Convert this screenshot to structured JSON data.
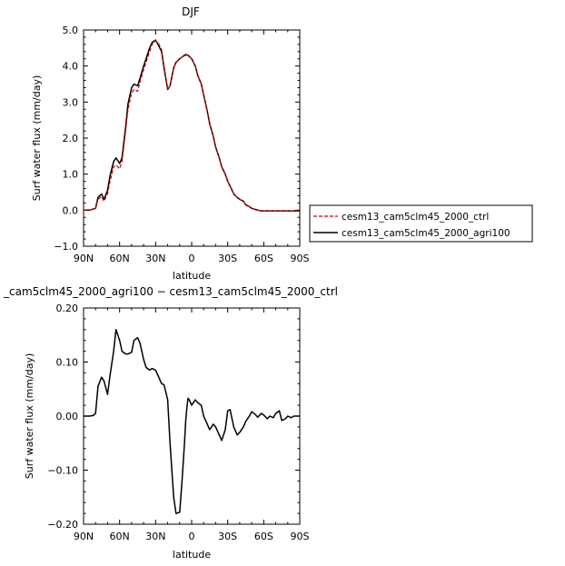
{
  "chart_data": [
    {
      "type": "line",
      "title": "DJF",
      "xlabel": "latitude",
      "ylabel": "Surf water flux (mm/day)",
      "x_ticks": [
        "90N",
        "60N",
        "30N",
        "0",
        "30S",
        "60S",
        "90S"
      ],
      "y_ticks": [
        "−1.0",
        "0.0",
        "1.0",
        "2.0",
        "3.0",
        "4.0",
        "5.0"
      ],
      "xlim": [
        90,
        -90
      ],
      "ylim": [
        -1.0,
        5.0
      ],
      "x": [
        90,
        85,
        80,
        78,
        75,
        73,
        70,
        68,
        65,
        63,
        60,
        58,
        55,
        53,
        50,
        48,
        45,
        43,
        40,
        38,
        35,
        33,
        30,
        28,
        25,
        23,
        20,
        18,
        15,
        13,
        10,
        8,
        5,
        3,
        0,
        -3,
        -5,
        -8,
        -10,
        -13,
        -15,
        -18,
        -20,
        -23,
        -25,
        -28,
        -30,
        -33,
        -35,
        -38,
        -40,
        -43,
        -45,
        -48,
        -50,
        -53,
        -55,
        -58,
        -60,
        -63,
        -65,
        -68,
        -70,
        -73,
        -75,
        -78,
        -80,
        -83,
        -85,
        -88,
        -90
      ],
      "legend_position": "right",
      "series": [
        {
          "name": "cesm13_cam5clm45_2000_ctrl",
          "color": "#cc0000",
          "dash": "dashed",
          "values": [
            0.0,
            0.0,
            0.05,
            0.3,
            0.38,
            0.25,
            0.45,
            0.8,
            1.2,
            1.25,
            1.15,
            1.35,
            2.2,
            2.8,
            3.25,
            3.35,
            3.3,
            3.55,
            3.9,
            4.1,
            4.4,
            4.6,
            4.7,
            4.65,
            4.45,
            4.0,
            3.35,
            3.45,
            3.95,
            4.1,
            4.2,
            4.25,
            4.3,
            4.3,
            4.2,
            4.0,
            3.75,
            3.5,
            3.2,
            2.75,
            2.4,
            2.05,
            1.75,
            1.45,
            1.2,
            1.0,
            0.8,
            0.6,
            0.45,
            0.35,
            0.3,
            0.25,
            0.15,
            0.1,
            0.05,
            0.02,
            0.0,
            -0.02,
            -0.02,
            -0.02,
            -0.02,
            -0.02,
            -0.02,
            -0.02,
            -0.02,
            -0.02,
            -0.02,
            -0.02,
            -0.02,
            -0.02,
            -0.02
          ]
        },
        {
          "name": "cesm13_cam5clm45_2000_agri100",
          "color": "#000000",
          "dash": "solid",
          "values": [
            0.0,
            0.0,
            0.05,
            0.35,
            0.45,
            0.3,
            0.55,
            0.95,
            1.35,
            1.45,
            1.3,
            1.45,
            2.3,
            2.95,
            3.4,
            3.5,
            3.45,
            3.65,
            4.0,
            4.2,
            4.5,
            4.65,
            4.72,
            4.6,
            4.4,
            3.95,
            3.35,
            3.45,
            3.95,
            4.1,
            4.2,
            4.25,
            4.32,
            4.3,
            4.2,
            4.0,
            3.75,
            3.5,
            3.2,
            2.75,
            2.4,
            2.05,
            1.75,
            1.45,
            1.2,
            1.0,
            0.8,
            0.6,
            0.45,
            0.35,
            0.3,
            0.25,
            0.15,
            0.1,
            0.05,
            0.02,
            0.0,
            -0.02,
            -0.02,
            -0.02,
            -0.02,
            -0.02,
            -0.02,
            -0.02,
            -0.02,
            -0.02,
            -0.02,
            -0.02,
            -0.02,
            -0.02,
            -0.02
          ]
        }
      ]
    },
    {
      "type": "line",
      "title": "_cam5clm45_2000_agri100 − cesm13_cam5clm45_2000_ctrl",
      "xlabel": "latitude",
      "ylabel": "Surf water flux (mm/day)",
      "x_ticks": [
        "90N",
        "60N",
        "30N",
        "0",
        "30S",
        "60S",
        "90S"
      ],
      "y_ticks": [
        "−0.20",
        "−0.10",
        "0.00",
        "0.10",
        "0.20"
      ],
      "xlim": [
        90,
        -90
      ],
      "ylim": [
        -0.2,
        0.2
      ],
      "x": [
        90,
        85,
        82,
        80,
        78,
        75,
        73,
        70,
        68,
        65,
        63,
        60,
        58,
        55,
        53,
        50,
        48,
        45,
        43,
        40,
        38,
        35,
        33,
        30,
        28,
        25,
        23,
        20,
        18,
        15,
        13,
        10,
        8,
        6,
        5,
        4,
        3,
        2,
        0,
        -3,
        -5,
        -8,
        -10,
        -12,
        -15,
        -18,
        -20,
        -23,
        -25,
        -28,
        -30,
        -32,
        -35,
        -38,
        -40,
        -43,
        -45,
        -48,
        -50,
        -53,
        -55,
        -58,
        -60,
        -63,
        -65,
        -68,
        -70,
        -73,
        -75,
        -78,
        -80,
        -83,
        -85,
        -88,
        -90
      ],
      "series": [
        {
          "name": "",
          "color": "#000000",
          "dash": "solid",
          "values": [
            0.0,
            0.0,
            0.001,
            0.005,
            0.055,
            0.072,
            0.065,
            0.04,
            0.075,
            0.12,
            0.16,
            0.14,
            0.12,
            0.115,
            0.115,
            0.118,
            0.14,
            0.145,
            0.135,
            0.105,
            0.09,
            0.085,
            0.088,
            0.085,
            0.075,
            0.06,
            0.058,
            0.03,
            -0.05,
            -0.15,
            -0.18,
            -0.178,
            -0.12,
            -0.05,
            -0.01,
            0.015,
            0.033,
            0.03,
            0.02,
            0.03,
            0.025,
            0.02,
            0.0,
            -0.01,
            -0.025,
            -0.015,
            -0.02,
            -0.035,
            -0.045,
            -0.025,
            0.01,
            0.012,
            -0.02,
            -0.035,
            -0.03,
            -0.02,
            -0.01,
            0.0,
            0.008,
            0.003,
            -0.002,
            0.005,
            0.002,
            -0.005,
            0.0,
            -0.003,
            0.005,
            0.01,
            -0.008,
            -0.005,
            0.0,
            -0.003,
            0.0,
            0.0,
            0.0
          ]
        }
      ]
    }
  ]
}
